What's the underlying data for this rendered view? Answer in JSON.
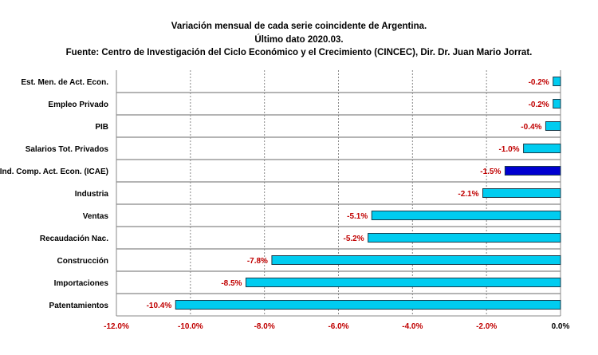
{
  "chart_data": {
    "type": "bar",
    "orientation": "horizontal",
    "title_lines": [
      "Variación mensual de cada serie coincidente de Argentina.",
      "Último dato 2020.03.",
      "Fuente: Centro de Investigación del Ciclo Económico y el Crecimiento (CINCEC), Dir. Dr. Juan Mario Jorrat."
    ],
    "categories": [
      "Est. Men. de Act. Econ.",
      "Empleo Privado",
      "PIB",
      "Salarios Tot. Privados",
      "Ind. Comp. Act. Econ. (ICAE)",
      "Industria",
      "Ventas",
      "Recaudación Nac.",
      "Construcción",
      "Importaciones",
      "Patentamientos"
    ],
    "values": [
      -0.2,
      -0.2,
      -0.4,
      -1.0,
      -1.5,
      -2.1,
      -5.1,
      -5.2,
      -7.8,
      -8.5,
      -10.4
    ],
    "data_labels": [
      "-0.2%",
      "-0.2%",
      "-0.4%",
      "-1.0%",
      "-1.5%",
      "-2.1%",
      "-5.1%",
      "-5.2%",
      "-7.8%",
      "-8.5%",
      "-10.4%"
    ],
    "highlight_index": 4,
    "x_ticks": [
      "-12.0%",
      "-10.0%",
      "-8.0%",
      "-6.0%",
      "-4.0%",
      "-2.0%",
      "0.0%"
    ],
    "x_tick_values": [
      -12,
      -10,
      -8,
      -6,
      -4,
      -2,
      0
    ],
    "xlim": [
      -12,
      0
    ],
    "xlabel": "",
    "ylabel": "",
    "grid": "vertical dashed",
    "colors": {
      "bar": "#00ccf0",
      "highlight": "#0000d0",
      "label": "#c00000",
      "axis_label": "#000000"
    }
  }
}
